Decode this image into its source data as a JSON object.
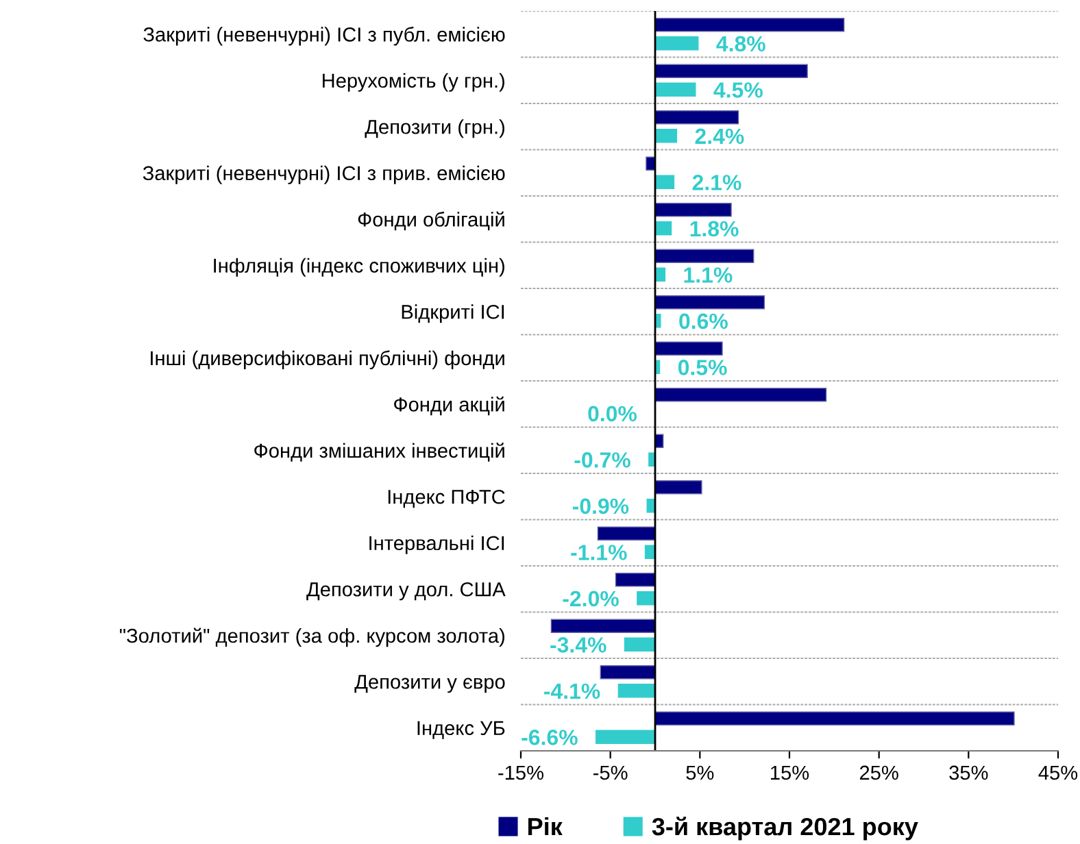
{
  "chart_data": {
    "type": "bar",
    "orientation": "horizontal",
    "categories": [
      "Закриті (невенчурні) ІСІ з публ. емісією",
      "Нерухомість (у грн.)",
      "Депозити (грн.)",
      "Закриті (невенчурні) ІСІ з прив. емісією",
      "Фонди облігацій",
      "Інфляція (індекс споживчих цін)",
      "Відкриті ІСІ",
      "Інші (диверсифіковані публічні) фонди",
      "Фонди акцій",
      "Фонди змішаних інвестицій",
      "Індекс ПФТС",
      "Інтервальні ІСІ",
      "Депозити у дол. США",
      "\"Золотий\" депозит (за оф. курсом золота)",
      "Депозити у євро",
      "Індекс УБ"
    ],
    "series": [
      {
        "name": "Рік",
        "color": "#000080",
        "values": [
          21.1,
          17.0,
          9.3,
          -1.0,
          8.5,
          11.0,
          12.2,
          7.5,
          19.1,
          0.9,
          5.2,
          -6.4,
          -4.4,
          -11.6,
          -6.1,
          40.1
        ]
      },
      {
        "name": "3-й квартал 2021 року",
        "color": "#33cccc",
        "values": [
          4.8,
          4.5,
          2.4,
          2.1,
          1.8,
          1.1,
          0.6,
          0.5,
          0.0,
          -0.7,
          -0.9,
          -1.1,
          -2.0,
          -3.4,
          -4.1,
          -6.6
        ],
        "value_labels": [
          "4.8%",
          "4.5%",
          "2.4%",
          "2.1%",
          "1.8%",
          "1.1%",
          "0.6%",
          "0.5%",
          "0.0%",
          "-0.7%",
          "-0.9%",
          "-1.1%",
          "-2.0%",
          "-3.4%",
          "-4.1%",
          "-6.6%"
        ]
      }
    ],
    "xlim": [
      -15,
      45
    ],
    "xticks": [
      {
        "value": -15,
        "label": "-15%"
      },
      {
        "value": -5,
        "label": "-5%"
      },
      {
        "value": 5,
        "label": "5%"
      },
      {
        "value": 15,
        "label": "15%"
      },
      {
        "value": 25,
        "label": "25%"
      },
      {
        "value": 35,
        "label": "35%"
      },
      {
        "value": 45,
        "label": "45%"
      }
    ],
    "grid": "y",
    "legend": "bottom"
  }
}
